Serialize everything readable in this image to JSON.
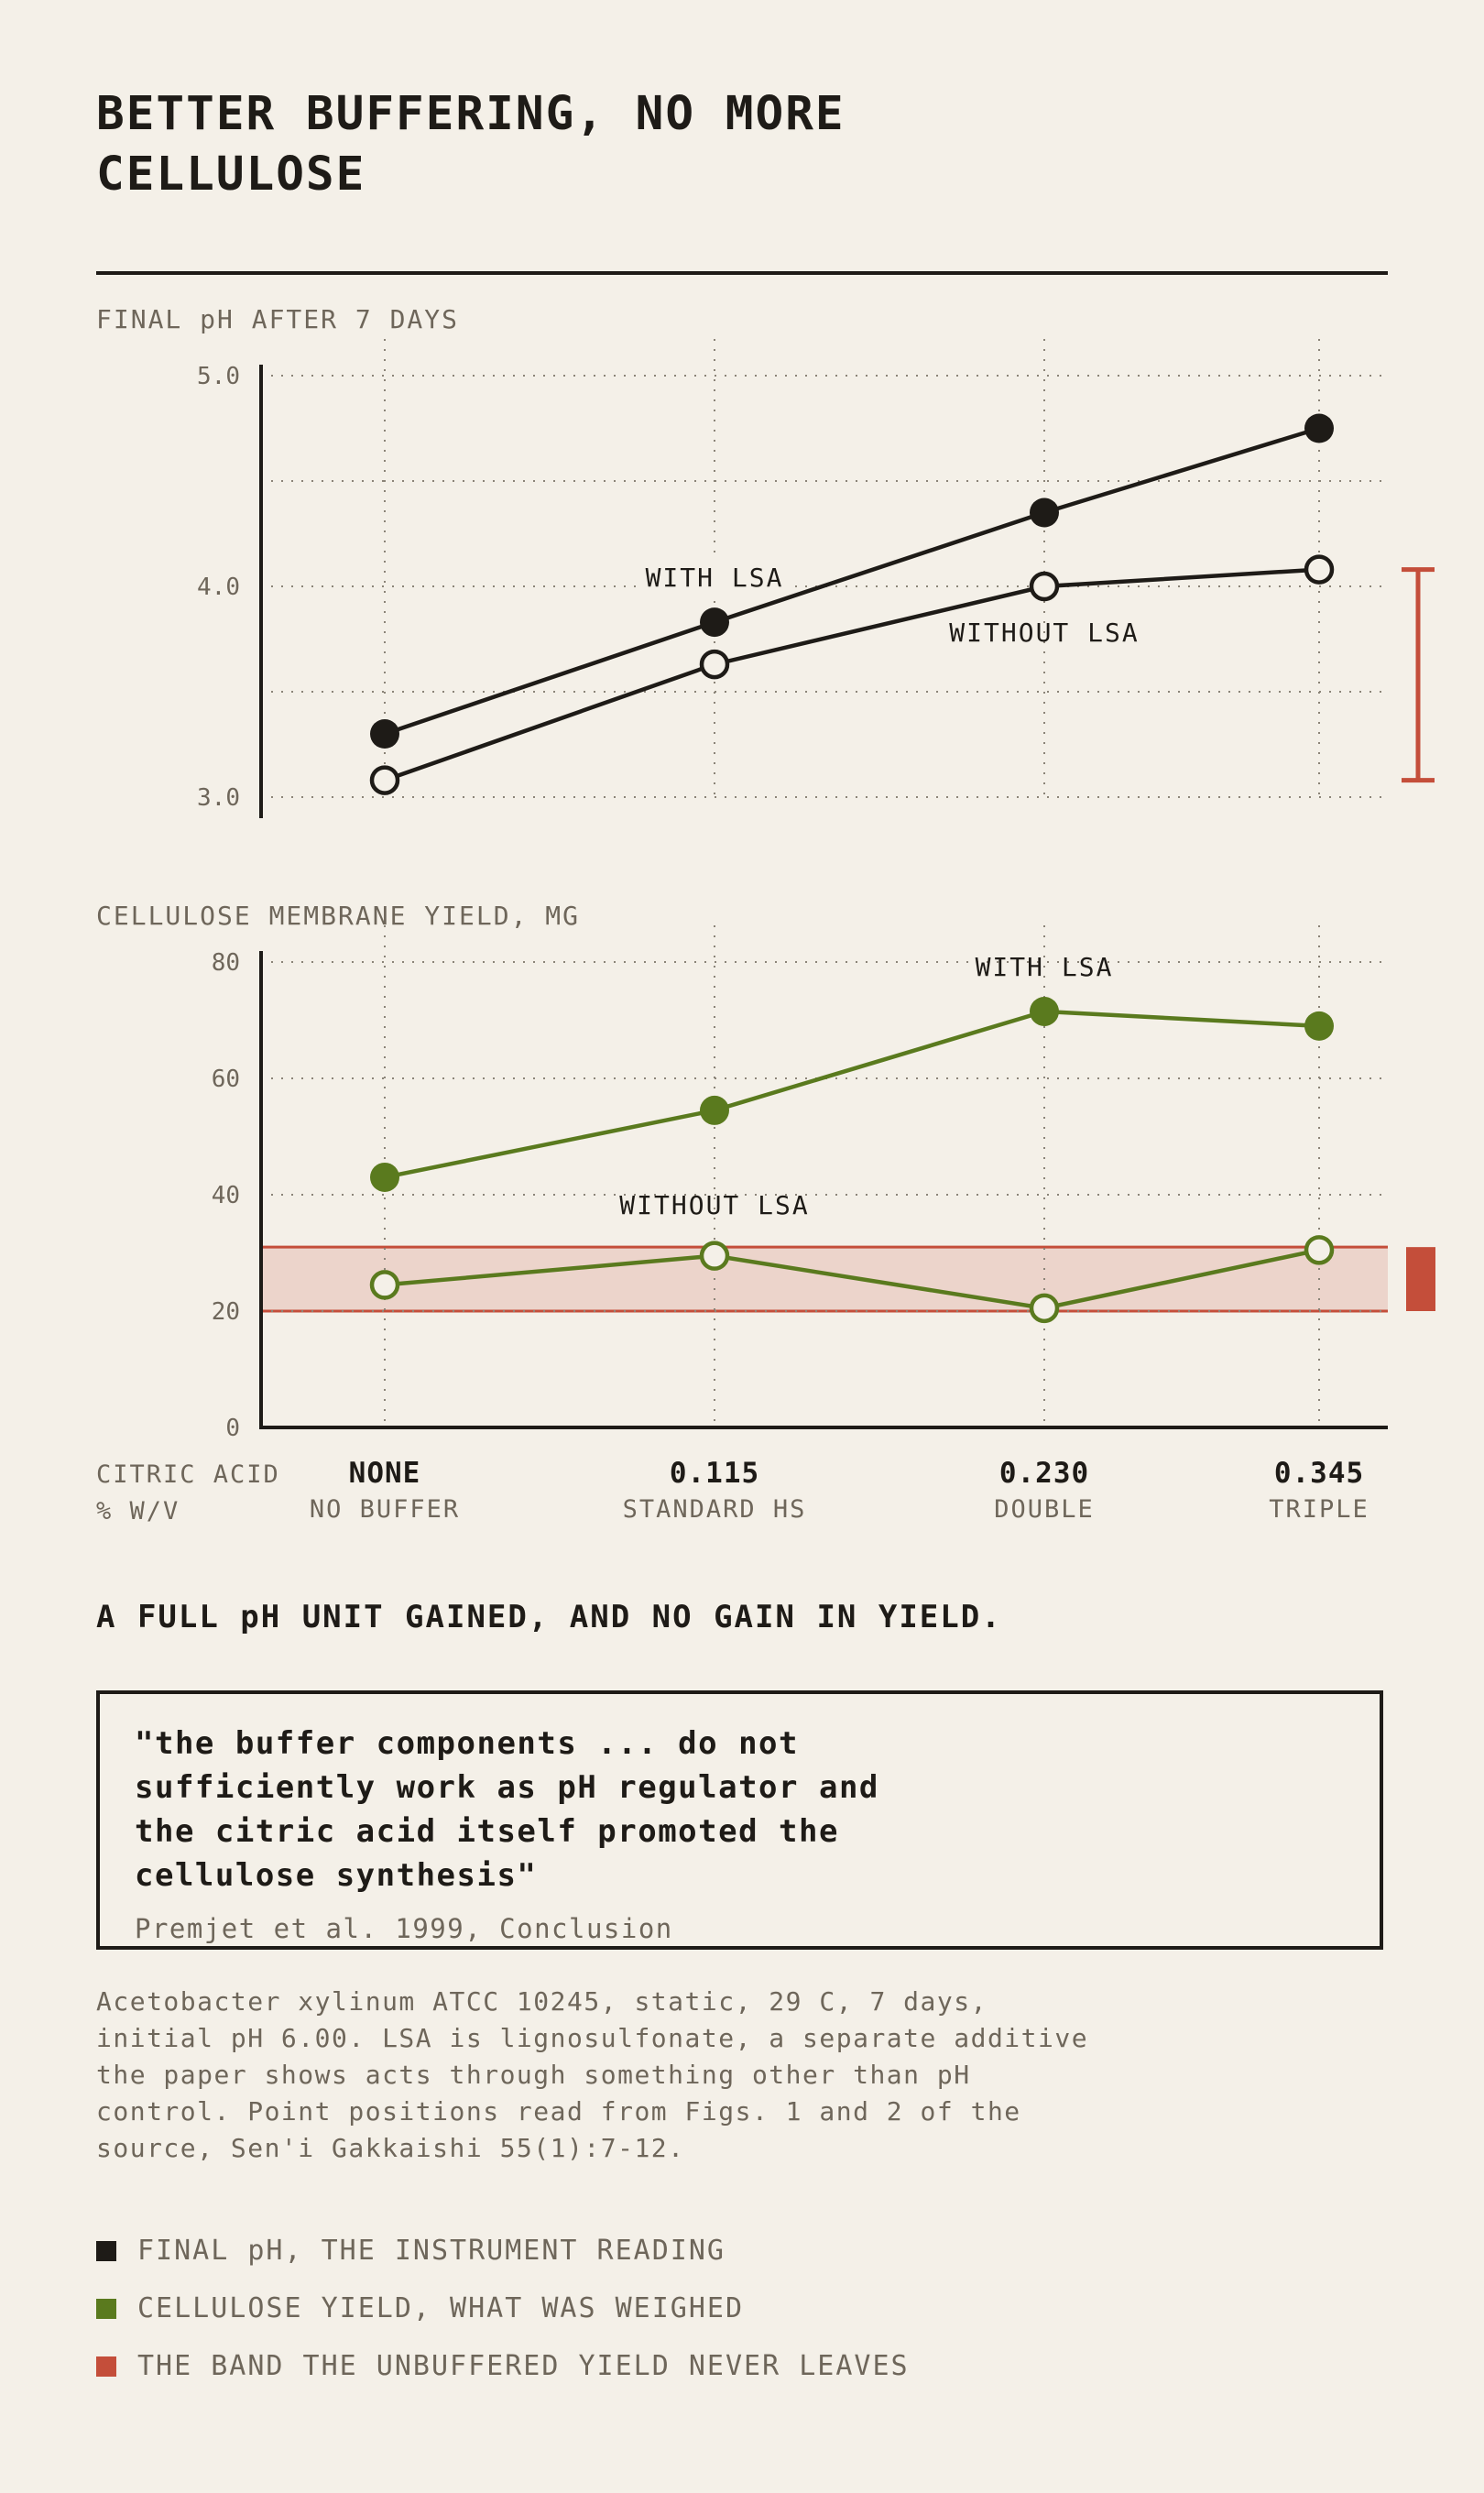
{
  "title": "BETTER BUFFERING, NO MORE CELLULOSE",
  "colors": {
    "background": "#f4f0e8",
    "ink": "#1e1b17",
    "green": "#5a7a1e",
    "red": "#c44e3a",
    "muted": "#6e665a"
  },
  "x_axis": {
    "caption": [
      "CITRIC ACID",
      "% W/V"
    ],
    "categories": [
      {
        "value": "NONE",
        "label": "NO BUFFER"
      },
      {
        "value": "0.115",
        "label": "STANDARD HS"
      },
      {
        "value": "0.230",
        "label": "DOUBLE"
      },
      {
        "value": "0.345",
        "label": "TRIPLE"
      }
    ]
  },
  "chart_data": [
    {
      "type": "line",
      "title": "FINAL pH AFTER 7 DAYS",
      "categories": [
        "NONE",
        "0.115",
        "0.230",
        "0.345"
      ],
      "x": [
        0,
        0.115,
        0.23,
        0.345
      ],
      "ylim": [
        3.0,
        5.0
      ],
      "yticks": [
        "5.0",
        "4.0",
        "3.0"
      ],
      "grid": true,
      "series": [
        {
          "name": "WITH LSA",
          "values": [
            3.3,
            3.83,
            4.35,
            4.75
          ],
          "marker": "filled",
          "color": "#1e1b17"
        },
        {
          "name": "WITHOUT LSA",
          "values": [
            3.08,
            3.63,
            4.0,
            4.08
          ],
          "marker": "open",
          "color": "#1e1b17"
        }
      ],
      "bracket": {
        "from": 3.08,
        "to": 4.08,
        "color": "#c44e3a"
      }
    },
    {
      "type": "line",
      "title": "CELLULOSE MEMBRANE YIELD, MG",
      "categories": [
        "NONE",
        "0.115",
        "0.230",
        "0.345"
      ],
      "x": [
        0,
        0.115,
        0.23,
        0.345
      ],
      "ylim": [
        0,
        80
      ],
      "yticks": [
        "80",
        "60",
        "40",
        "20",
        "0"
      ],
      "grid": true,
      "series": [
        {
          "name": "WITH LSA",
          "values": [
            43,
            54.5,
            71.5,
            69
          ],
          "marker": "filled",
          "color": "#5a7a1e"
        },
        {
          "name": "WITHOUT LSA",
          "values": [
            24.5,
            29.5,
            20.5,
            30.5
          ],
          "marker": "open",
          "color": "#5a7a1e"
        }
      ],
      "band": {
        "from": 20,
        "to": 31,
        "color": "#c44e3a"
      }
    }
  ],
  "takeaway": "A FULL pH UNIT GAINED, AND NO GAIN IN YIELD.",
  "quote": {
    "lines": [
      "\"the buffer components ... do not",
      "sufficiently work as pH regulator and",
      "the citric acid itself promoted the",
      "cellulose synthesis\""
    ],
    "citation": "Premjet et al. 1999, Conclusion"
  },
  "notes": [
    "Acetobacter xylinum ATCC 10245, static, 29 C, 7 days,",
    "initial pH 6.00. LSA is lignosulfonate, a separate additive",
    "the paper shows acts through something other than pH",
    "control. Point positions read from Figs. 1 and 2 of the",
    "source, Sen'i Gakkaishi 55(1):7-12."
  ],
  "legend": [
    {
      "label": "FINAL pH, THE INSTRUMENT READING",
      "color": "#1e1b17"
    },
    {
      "label": "CELLULOSE YIELD, WHAT WAS WEIGHED",
      "color": "#5a7a1e"
    },
    {
      "label": "THE BAND THE UNBUFFERED YIELD NEVER LEAVES",
      "color": "#c44e3a"
    }
  ]
}
